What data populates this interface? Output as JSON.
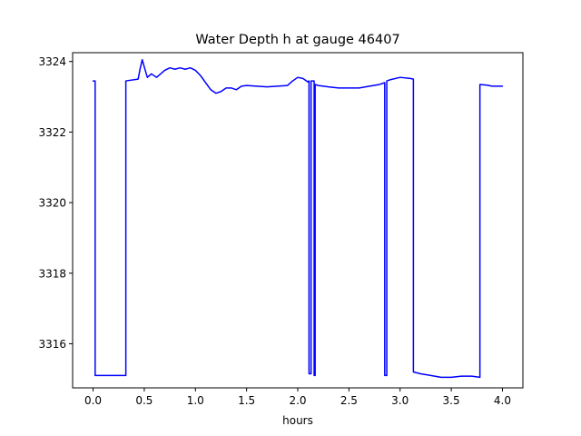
{
  "chart_data": {
    "type": "line",
    "title": "Water Depth h at gauge 46407",
    "xlabel": "hours",
    "ylabel": "",
    "xlim": [
      -0.2,
      4.2
    ],
    "ylim": [
      3314.75,
      3324.25
    ],
    "x_ticks": [
      0.0,
      0.5,
      1.0,
      1.5,
      2.0,
      2.5,
      3.0,
      3.5,
      4.0
    ],
    "x_tick_labels": [
      "0.0",
      "0.5",
      "1.0",
      "1.5",
      "2.0",
      "2.5",
      "3.0",
      "3.5",
      "4.0"
    ],
    "y_ticks": [
      3316,
      3318,
      3320,
      3322,
      3324
    ],
    "y_tick_labels": [
      "3316",
      "3318",
      "3320",
      "3322",
      "3324"
    ],
    "grid": false,
    "series": [
      {
        "color": "#0000ff",
        "x": [
          0.0,
          0.02,
          0.02,
          0.32,
          0.32,
          0.44,
          0.46,
          0.48,
          0.5,
          0.53,
          0.57,
          0.62,
          0.66,
          0.7,
          0.75,
          0.8,
          0.85,
          0.9,
          0.95,
          1.0,
          1.05,
          1.1,
          1.15,
          1.2,
          1.25,
          1.3,
          1.35,
          1.4,
          1.45,
          1.5,
          1.6,
          1.7,
          1.8,
          1.9,
          1.95,
          2.0,
          2.05,
          2.1,
          2.11,
          2.11,
          2.13,
          2.13,
          2.16,
          2.16,
          2.17,
          2.17,
          2.2,
          2.3,
          2.4,
          2.5,
          2.6,
          2.7,
          2.8,
          2.85,
          2.85,
          2.87,
          2.87,
          2.9,
          3.0,
          3.1,
          3.13,
          3.13,
          3.2,
          3.3,
          3.4,
          3.5,
          3.6,
          3.7,
          3.78,
          3.78,
          3.85,
          3.9,
          4.0
        ],
        "y": [
          3323.45,
          3323.45,
          3315.1,
          3315.1,
          3323.45,
          3323.5,
          3323.8,
          3324.05,
          3323.85,
          3323.55,
          3323.65,
          3323.55,
          3323.65,
          3323.75,
          3323.82,
          3323.78,
          3323.82,
          3323.78,
          3323.82,
          3323.75,
          3323.6,
          3323.4,
          3323.2,
          3323.1,
          3323.15,
          3323.25,
          3323.25,
          3323.2,
          3323.3,
          3323.32,
          3323.3,
          3323.28,
          3323.3,
          3323.32,
          3323.45,
          3323.55,
          3323.52,
          3323.42,
          3323.45,
          3315.15,
          3315.15,
          3323.45,
          3323.45,
          3315.1,
          3315.1,
          3323.35,
          3323.32,
          3323.28,
          3323.25,
          3323.25,
          3323.25,
          3323.3,
          3323.35,
          3323.4,
          3315.1,
          3315.1,
          3323.45,
          3323.48,
          3323.55,
          3323.52,
          3323.5,
          3315.2,
          3315.15,
          3315.1,
          3315.05,
          3315.05,
          3315.08,
          3315.08,
          3315.05,
          3323.35,
          3323.33,
          3323.3,
          3323.3
        ]
      }
    ]
  }
}
